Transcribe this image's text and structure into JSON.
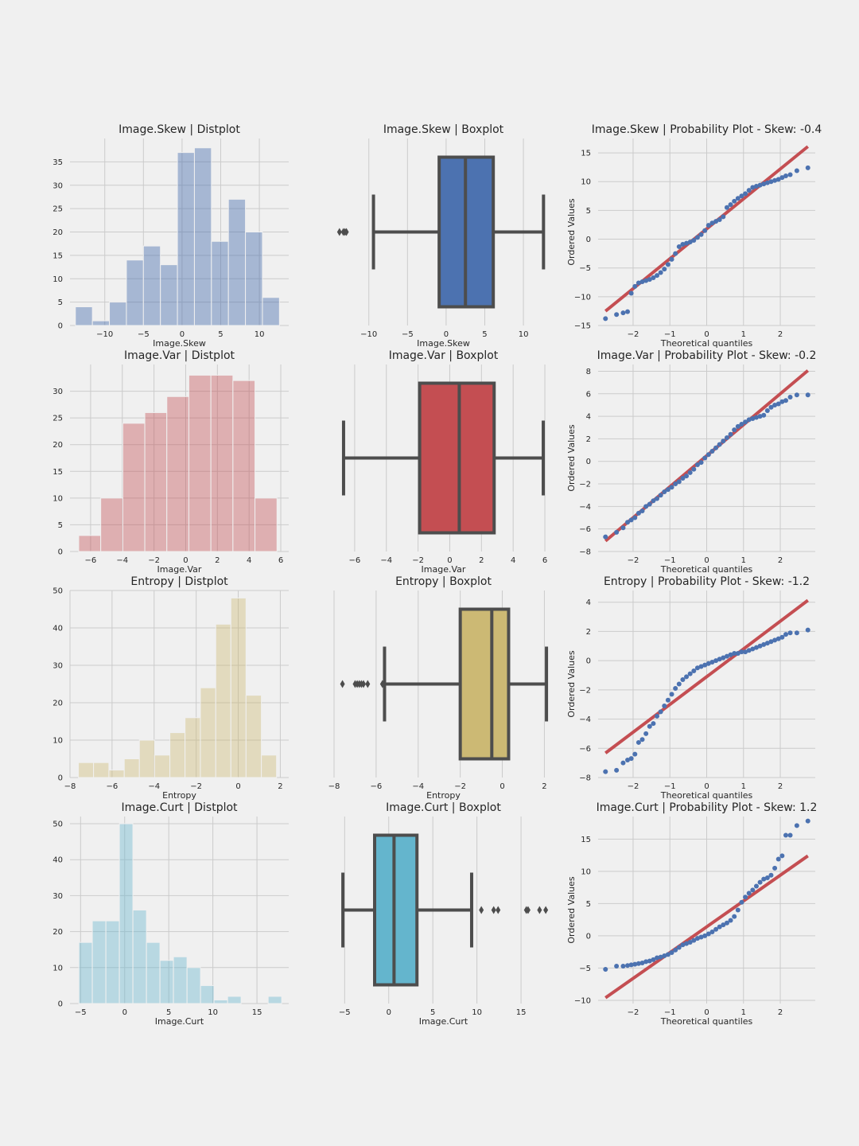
{
  "colors": {
    "background": "#f0f0f0",
    "grid": "#cbcbcb",
    "box_line": "#4d4d4d",
    "qq_points": "#4c72b0",
    "qq_line": "#c44e52",
    "skew": "#4c72b0",
    "var": "#c44e52",
    "entropy": "#ccb974",
    "curt": "#64b5cd"
  },
  "chart_data": [
    {
      "type": "bar",
      "row": 0,
      "col": 0,
      "title": "Image.Skew | Distplot",
      "xlabel": "Image.Skew",
      "ylabel": "",
      "color_key": "skew",
      "alpha": 0.45,
      "xlim": [
        -14.5,
        13.8
      ],
      "ylim": [
        0,
        40
      ],
      "xticks": [
        -10,
        -5,
        0,
        5,
        10
      ],
      "yticks": [
        0,
        5,
        10,
        15,
        20,
        25,
        30,
        35
      ],
      "edges": [
        -13.8,
        -11.6,
        -9.4,
        -7.2,
        -5.0,
        -2.8,
        -0.6,
        1.6,
        3.8,
        6.0,
        8.2,
        10.4,
        12.6
      ],
      "values": [
        4,
        1,
        5,
        14,
        17,
        13,
        37,
        38,
        18,
        27,
        20,
        6
      ],
      "grid": true
    },
    {
      "type": "box",
      "row": 0,
      "col": 1,
      "title": "Image.Skew | Boxplot",
      "xlabel": "Image.Skew",
      "color_key": "skew",
      "xlim": [
        -14.5,
        13.8
      ],
      "xticks": [
        -10,
        -5,
        0,
        5,
        10
      ],
      "whisker_low": -9.4,
      "q1": -0.9,
      "median": 2.5,
      "q3": 6.1,
      "whisker_high": 12.6,
      "outliers": [
        -13.8,
        -13.3,
        -13.1,
        -12.9
      ],
      "grid": true
    },
    {
      "type": "scatter",
      "row": 0,
      "col": 2,
      "title": "Image.Skew | Probability Plot - Skew: -0.4",
      "xlabel": "Theoretical quantiles",
      "ylabel": "Ordered Values",
      "xlim": [
        -2.95,
        2.95
      ],
      "ylim": [
        -15,
        17.5
      ],
      "xticks": [
        -2,
        -1,
        0,
        1,
        2
      ],
      "yticks": [
        -15,
        -10,
        -5,
        0,
        5,
        10,
        15
      ],
      "fit_line": {
        "slope": 5.2,
        "intercept": 1.8
      },
      "points": [
        [
          -2.75,
          -13.8
        ],
        [
          -2.45,
          -13.1
        ],
        [
          -2.27,
          -12.8
        ],
        [
          -2.15,
          -12.6
        ],
        [
          -2.05,
          -9.4
        ],
        [
          -1.95,
          -8.2
        ],
        [
          -1.85,
          -7.6
        ],
        [
          -1.75,
          -7.4
        ],
        [
          -1.65,
          -7.2
        ],
        [
          -1.55,
          -7.0
        ],
        [
          -1.45,
          -6.7
        ],
        [
          -1.35,
          -6.3
        ],
        [
          -1.25,
          -5.8
        ],
        [
          -1.15,
          -5.2
        ],
        [
          -1.05,
          -4.4
        ],
        [
          -0.95,
          -3.5
        ],
        [
          -0.85,
          -2.5
        ],
        [
          -0.75,
          -1.3
        ],
        [
          -0.65,
          -0.9
        ],
        [
          -0.55,
          -0.7
        ],
        [
          -0.45,
          -0.5
        ],
        [
          -0.35,
          -0.2
        ],
        [
          -0.25,
          0.3
        ],
        [
          -0.15,
          0.8
        ],
        [
          -0.05,
          1.5
        ],
        [
          0.05,
          2.4
        ],
        [
          0.15,
          2.8
        ],
        [
          0.25,
          3.1
        ],
        [
          0.35,
          3.4
        ],
        [
          0.45,
          3.9
        ],
        [
          0.55,
          5.5
        ],
        [
          0.65,
          6.0
        ],
        [
          0.75,
          6.6
        ],
        [
          0.85,
          7.1
        ],
        [
          0.95,
          7.5
        ],
        [
          1.05,
          7.9
        ],
        [
          1.15,
          8.5
        ],
        [
          1.25,
          9.0
        ],
        [
          1.35,
          9.2
        ],
        [
          1.45,
          9.4
        ],
        [
          1.55,
          9.6
        ],
        [
          1.65,
          9.8
        ],
        [
          1.75,
          10.0
        ],
        [
          1.85,
          10.2
        ],
        [
          1.95,
          10.4
        ],
        [
          2.05,
          10.7
        ],
        [
          2.15,
          11.0
        ],
        [
          2.27,
          11.2
        ],
        [
          2.45,
          11.9
        ],
        [
          2.75,
          12.4
        ]
      ],
      "grid": true
    },
    {
      "type": "bar",
      "row": 1,
      "col": 0,
      "title": "Image.Var | Distplot",
      "xlabel": "Image.Var",
      "ylabel": "",
      "color_key": "var",
      "alpha": 0.4,
      "xlim": [
        -7.3,
        6.5
      ],
      "ylim": [
        0,
        35
      ],
      "xticks": [
        -6,
        -4,
        -2,
        0,
        2,
        4,
        6
      ],
      "yticks": [
        0,
        5,
        10,
        15,
        20,
        25,
        30
      ],
      "edges": [
        -6.75,
        -5.36,
        -3.97,
        -2.58,
        -1.19,
        0.2,
        1.59,
        2.98,
        4.37,
        5.76
      ],
      "values": [
        3,
        10,
        24,
        26,
        29,
        33,
        33,
        32,
        10
      ],
      "grid": true
    },
    {
      "type": "box",
      "row": 1,
      "col": 1,
      "title": "Image.Var | Boxplot",
      "xlabel": "Image.Var",
      "color_key": "var",
      "xlim": [
        -7.3,
        6.5
      ],
      "xticks": [
        -6,
        -4,
        -2,
        0,
        2,
        4,
        6
      ],
      "whisker_low": -6.7,
      "q1": -1.9,
      "median": 0.6,
      "q3": 2.8,
      "whisker_high": 5.9,
      "outliers": [],
      "grid": true
    },
    {
      "type": "scatter",
      "row": 1,
      "col": 2,
      "title": "Image.Var | Probability Plot - Skew: -0.2",
      "xlabel": "Theoretical quantiles",
      "ylabel": "Ordered Values",
      "xlim": [
        -2.95,
        2.95
      ],
      "ylim": [
        -8,
        8.6
      ],
      "xticks": [
        -2,
        -1,
        0,
        1,
        2
      ],
      "yticks": [
        -8,
        -6,
        -4,
        -2,
        0,
        2,
        4,
        6,
        8
      ],
      "fit_line": {
        "slope": 2.75,
        "intercept": 0.5
      },
      "points": [
        [
          -2.75,
          -6.7
        ],
        [
          -2.45,
          -6.3
        ],
        [
          -2.27,
          -5.9
        ],
        [
          -2.15,
          -5.4
        ],
        [
          -2.05,
          -5.2
        ],
        [
          -1.95,
          -5.0
        ],
        [
          -1.85,
          -4.6
        ],
        [
          -1.75,
          -4.4
        ],
        [
          -1.65,
          -4.0
        ],
        [
          -1.55,
          -3.8
        ],
        [
          -1.45,
          -3.5
        ],
        [
          -1.35,
          -3.3
        ],
        [
          -1.25,
          -3.0
        ],
        [
          -1.15,
          -2.7
        ],
        [
          -1.05,
          -2.5
        ],
        [
          -0.95,
          -2.3
        ],
        [
          -0.85,
          -2.0
        ],
        [
          -0.75,
          -1.8
        ],
        [
          -0.65,
          -1.5
        ],
        [
          -0.55,
          -1.3
        ],
        [
          -0.45,
          -1.0
        ],
        [
          -0.35,
          -0.7
        ],
        [
          -0.25,
          -0.3
        ],
        [
          -0.15,
          -0.1
        ],
        [
          -0.05,
          0.3
        ],
        [
          0.05,
          0.6
        ],
        [
          0.15,
          0.9
        ],
        [
          0.25,
          1.2
        ],
        [
          0.35,
          1.5
        ],
        [
          0.45,
          1.8
        ],
        [
          0.55,
          2.1
        ],
        [
          0.65,
          2.4
        ],
        [
          0.75,
          2.8
        ],
        [
          0.85,
          3.1
        ],
        [
          0.95,
          3.3
        ],
        [
          1.05,
          3.5
        ],
        [
          1.15,
          3.7
        ],
        [
          1.25,
          3.8
        ],
        [
          1.35,
          3.9
        ],
        [
          1.45,
          4.0
        ],
        [
          1.55,
          4.1
        ],
        [
          1.65,
          4.5
        ],
        [
          1.75,
          4.8
        ],
        [
          1.85,
          5.0
        ],
        [
          1.95,
          5.1
        ],
        [
          2.05,
          5.3
        ],
        [
          2.15,
          5.4
        ],
        [
          2.27,
          5.7
        ],
        [
          2.45,
          5.9
        ],
        [
          2.75,
          5.9
        ]
      ],
      "grid": true
    },
    {
      "type": "bar",
      "row": 2,
      "col": 0,
      "title": "Entropy | Distplot",
      "xlabel": "Entropy",
      "ylabel": "",
      "color_key": "entropy",
      "alpha": 0.4,
      "xlim": [
        -8,
        2.4
      ],
      "ylim": [
        0,
        50
      ],
      "xticks": [
        -8,
        -6,
        -4,
        -2,
        0,
        2
      ],
      "yticks": [
        0,
        10,
        20,
        30,
        40,
        50
      ],
      "edges": [
        -7.6,
        -6.88,
        -6.15,
        -5.42,
        -4.7,
        -3.98,
        -3.25,
        -2.53,
        -1.8,
        -1.07,
        -0.35,
        0.37,
        1.1,
        1.82
      ],
      "values": [
        4,
        4,
        2,
        5,
        10,
        6,
        12,
        16,
        24,
        41,
        48,
        22,
        6
      ],
      "grid": true
    },
    {
      "type": "box",
      "row": 2,
      "col": 1,
      "title": "Entropy | Boxplot",
      "xlabel": "Entropy",
      "color_key": "entropy",
      "xlim": [
        -8,
        2.4
      ],
      "xticks": [
        -8,
        -6,
        -4,
        -2,
        0,
        2
      ],
      "whisker_low": -5.6,
      "q1": -2.0,
      "median": -0.5,
      "q3": 0.3,
      "whisker_high": 2.1,
      "outliers": [
        -7.6,
        -7.0,
        -6.9,
        -6.8,
        -6.7,
        -6.6,
        -6.4,
        -5.7
      ],
      "grid": true
    },
    {
      "type": "scatter",
      "row": 2,
      "col": 2,
      "title": "Entropy | Probability Plot - Skew: -1.2",
      "xlabel": "Theoretical quantiles",
      "ylabel": "Ordered Values",
      "xlim": [
        -2.95,
        2.95
      ],
      "ylim": [
        -8,
        4.8
      ],
      "xticks": [
        -2,
        -1,
        0,
        1,
        2
      ],
      "yticks": [
        -8,
        -6,
        -4,
        -2,
        0,
        2,
        4
      ],
      "fit_line": {
        "slope": 1.9,
        "intercept": -1.1
      },
      "points": [
        [
          -2.75,
          -7.6
        ],
        [
          -2.45,
          -7.5
        ],
        [
          -2.27,
          -7.0
        ],
        [
          -2.15,
          -6.8
        ],
        [
          -2.05,
          -6.7
        ],
        [
          -1.95,
          -6.4
        ],
        [
          -1.85,
          -5.6
        ],
        [
          -1.75,
          -5.4
        ],
        [
          -1.65,
          -5.0
        ],
        [
          -1.55,
          -4.5
        ],
        [
          -1.45,
          -4.3
        ],
        [
          -1.35,
          -3.8
        ],
        [
          -1.25,
          -3.5
        ],
        [
          -1.15,
          -3.1
        ],
        [
          -1.05,
          -2.7
        ],
        [
          -0.95,
          -2.3
        ],
        [
          -0.85,
          -1.9
        ],
        [
          -0.75,
          -1.6
        ],
        [
          -0.65,
          -1.3
        ],
        [
          -0.55,
          -1.1
        ],
        [
          -0.45,
          -0.9
        ],
        [
          -0.35,
          -0.7
        ],
        [
          -0.25,
          -0.5
        ],
        [
          -0.15,
          -0.4
        ],
        [
          -0.05,
          -0.3
        ],
        [
          0.05,
          -0.2
        ],
        [
          0.15,
          -0.1
        ],
        [
          0.25,
          0.0
        ],
        [
          0.35,
          0.1
        ],
        [
          0.45,
          0.2
        ],
        [
          0.55,
          0.3
        ],
        [
          0.65,
          0.4
        ],
        [
          0.75,
          0.5
        ],
        [
          0.85,
          0.5
        ],
        [
          0.95,
          0.6
        ],
        [
          1.05,
          0.6
        ],
        [
          1.15,
          0.7
        ],
        [
          1.25,
          0.8
        ],
        [
          1.35,
          0.9
        ],
        [
          1.45,
          1.0
        ],
        [
          1.55,
          1.1
        ],
        [
          1.65,
          1.2
        ],
        [
          1.75,
          1.3
        ],
        [
          1.85,
          1.4
        ],
        [
          1.95,
          1.5
        ],
        [
          2.05,
          1.6
        ],
        [
          2.15,
          1.8
        ],
        [
          2.27,
          1.9
        ],
        [
          2.45,
          1.9
        ],
        [
          2.75,
          2.1
        ]
      ],
      "grid": true
    },
    {
      "type": "bar",
      "row": 3,
      "col": 0,
      "title": "Image.Curt | Distplot",
      "xlabel": "Image.Curt",
      "ylabel": "",
      "color_key": "curt",
      "alpha": 0.4,
      "xlim": [
        -6.2,
        18.6
      ],
      "ylim": [
        0,
        52
      ],
      "xticks": [
        -5,
        0,
        5,
        10,
        15
      ],
      "yticks": [
        0,
        10,
        20,
        30,
        40,
        50
      ],
      "edges": [
        -5.2,
        -3.67,
        -2.13,
        -0.6,
        0.93,
        2.47,
        4.0,
        5.53,
        7.07,
        8.6,
        10.13,
        11.67,
        13.2,
        14.73,
        16.27,
        17.8
      ],
      "values": [
        17,
        23,
        23,
        50,
        26,
        17,
        12,
        13,
        10,
        5,
        1,
        2,
        0,
        0,
        2
      ],
      "grid": true
    },
    {
      "type": "box",
      "row": 3,
      "col": 1,
      "title": "Image.Curt | Boxplot",
      "xlabel": "Image.Curt",
      "color_key": "curt",
      "xlim": [
        -6.2,
        18.6
      ],
      "xticks": [
        -5,
        0,
        5,
        10,
        15
      ],
      "whisker_low": -5.2,
      "q1": -1.6,
      "median": 0.6,
      "q3": 3.2,
      "whisker_high": 9.4,
      "outliers": [
        10.5,
        11.9,
        12.4,
        15.6,
        15.8,
        17.1,
        17.8
      ],
      "grid": true
    },
    {
      "type": "scatter",
      "row": 3,
      "col": 2,
      "title": "Image.Curt | Probability Plot - Skew: 1.2",
      "xlabel": "Theoretical quantiles",
      "ylabel": "Ordered Values",
      "xlim": [
        -2.95,
        2.95
      ],
      "ylim": [
        -10.5,
        18.5
      ],
      "xticks": [
        -2,
        -1,
        0,
        1,
        2
      ],
      "yticks": [
        -10,
        -5,
        0,
        5,
        10,
        15
      ],
      "fit_line": {
        "slope": 4.0,
        "intercept": 1.4
      },
      "points": [
        [
          -2.75,
          -5.2
        ],
        [
          -2.45,
          -4.7
        ],
        [
          -2.27,
          -4.7
        ],
        [
          -2.15,
          -4.6
        ],
        [
          -2.05,
          -4.5
        ],
        [
          -1.95,
          -4.4
        ],
        [
          -1.85,
          -4.3
        ],
        [
          -1.75,
          -4.2
        ],
        [
          -1.65,
          -4.0
        ],
        [
          -1.55,
          -3.9
        ],
        [
          -1.45,
          -3.7
        ],
        [
          -1.35,
          -3.4
        ],
        [
          -1.25,
          -3.3
        ],
        [
          -1.15,
          -3.1
        ],
        [
          -1.05,
          -2.9
        ],
        [
          -0.95,
          -2.6
        ],
        [
          -0.85,
          -2.2
        ],
        [
          -0.75,
          -1.8
        ],
        [
          -0.65,
          -1.4
        ],
        [
          -0.55,
          -1.2
        ],
        [
          -0.45,
          -1.0
        ],
        [
          -0.35,
          -0.7
        ],
        [
          -0.25,
          -0.4
        ],
        [
          -0.15,
          -0.2
        ],
        [
          -0.05,
          0.0
        ],
        [
          0.05,
          0.3
        ],
        [
          0.15,
          0.6
        ],
        [
          0.25,
          1.0
        ],
        [
          0.35,
          1.4
        ],
        [
          0.45,
          1.7
        ],
        [
          0.55,
          2.0
        ],
        [
          0.65,
          2.4
        ],
        [
          0.75,
          3.0
        ],
        [
          0.85,
          4.0
        ],
        [
          0.95,
          5.2
        ],
        [
          1.05,
          6.0
        ],
        [
          1.15,
          6.6
        ],
        [
          1.25,
          7.1
        ],
        [
          1.35,
          7.7
        ],
        [
          1.45,
          8.3
        ],
        [
          1.55,
          8.8
        ],
        [
          1.65,
          9.0
        ],
        [
          1.75,
          9.4
        ],
        [
          1.85,
          10.5
        ],
        [
          1.95,
          11.9
        ],
        [
          2.05,
          12.4
        ],
        [
          2.15,
          15.6
        ],
        [
          2.27,
          15.6
        ],
        [
          2.45,
          17.1
        ],
        [
          2.75,
          17.8
        ]
      ],
      "grid": true
    }
  ]
}
